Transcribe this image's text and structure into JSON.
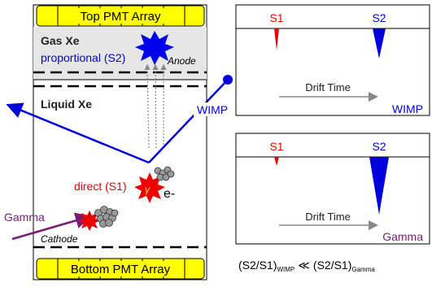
{
  "detector": {
    "top_array": "Top PMT Array",
    "bottom_array": "Bottom PMT Array",
    "gas_label": "Gas Xe",
    "proportional_label": "proportional (S2)",
    "anode_label": "Anode",
    "liquid_label": "Liquid Xe",
    "direct_label": "direct (S1)",
    "gamma_symbol": "γ",
    "electron_label": "e-",
    "cathode_label": "Cathode",
    "wimp_label": "WIMP",
    "gamma_label": "Gamma"
  },
  "wimp_panel": {
    "s1_label": "S1",
    "s2_label": "S2",
    "drift_label": "Drift Time",
    "event_label": "WIMP"
  },
  "gamma_panel": {
    "s1_label": "S1",
    "s2_label": "S2",
    "drift_label": "Drift Time",
    "event_label": "Gamma"
  },
  "ratio": {
    "lhs": "(S2/S1)",
    "lhs_sub": "WIMP",
    "op": "≪",
    "rhs": "(S2/S1)",
    "rhs_sub": "Gamma"
  },
  "colors": {
    "pmt_fill": "#ffff00",
    "gas_fill": "#e6e6e6",
    "blue": "#0000dd",
    "red": "#ee0000",
    "purple": "#7a1a7a",
    "arrow_gray": "#888888"
  }
}
